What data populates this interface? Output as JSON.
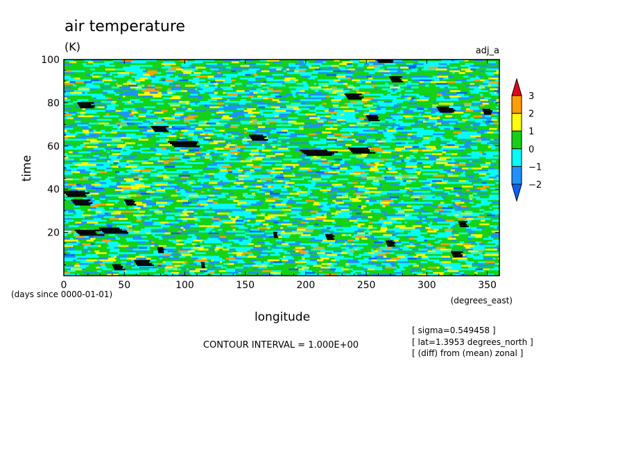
{
  "chart_data": {
    "type": "heatmap",
    "title": "air temperature",
    "units": "(K)",
    "variable_tag": "adj_a",
    "xlabel": "longitude",
    "x_units": "(degrees_east)",
    "ylabel": "time",
    "y_units": "(days since 0000-01-01)",
    "xlim": [
      0,
      360
    ],
    "ylim": [
      0,
      100
    ],
    "x_ticks": [
      "0",
      "50",
      "100",
      "150",
      "200",
      "250",
      "300",
      "350"
    ],
    "y_ticks": [
      "20",
      "40",
      "60",
      "80",
      "100"
    ],
    "contour_interval_text": "CONTOUR INTERVAL = 1.000E+00",
    "annotations": [
      "[ sigma=0.549458 ]",
      "[ lat=1.3953 degrees_north ]",
      "[ (diff) from (mean) zonal ]"
    ],
    "colorbar": {
      "labels": [
        "3",
        "2",
        "1",
        "0",
        "−1",
        "−2"
      ],
      "colors": [
        "#e8001a",
        "#ff9e00",
        "#ffff00",
        "#14d214",
        "#00ffff",
        "#1e90ff",
        "#0064ff"
      ]
    },
    "low_value_patches_color": "#000000"
  }
}
